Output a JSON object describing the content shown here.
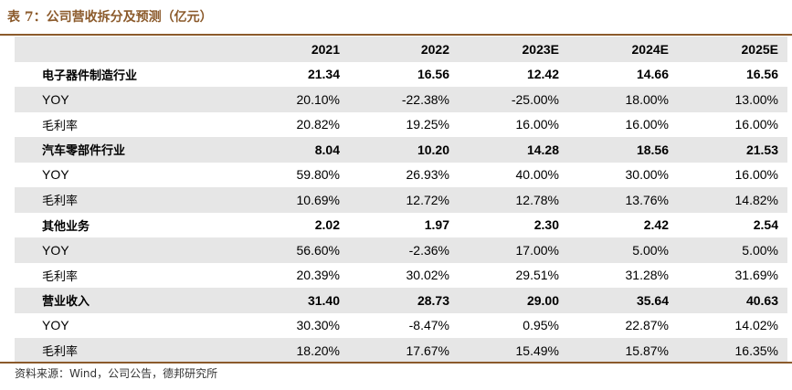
{
  "caption": "表 7：公司营收拆分及预测（亿元）",
  "columns": [
    "",
    "2021",
    "2022",
    "2023E",
    "2024E",
    "2025E"
  ],
  "rows": [
    {
      "label": "电子器件制造行业",
      "values": [
        "21.34",
        "16.56",
        "12.42",
        "14.66",
        "16.56"
      ]
    },
    {
      "label": "YOY",
      "values": [
        "20.10%",
        "-22.38%",
        "-25.00%",
        "18.00%",
        "13.00%"
      ]
    },
    {
      "label": "毛利率",
      "values": [
        "20.82%",
        "19.25%",
        "16.00%",
        "16.00%",
        "16.00%"
      ]
    },
    {
      "label": "汽车零部件行业",
      "values": [
        "8.04",
        "10.20",
        "14.28",
        "18.56",
        "21.53"
      ]
    },
    {
      "label": "YOY",
      "values": [
        "59.80%",
        "26.93%",
        "40.00%",
        "30.00%",
        "16.00%"
      ]
    },
    {
      "label": "毛利率",
      "values": [
        "10.69%",
        "12.72%",
        "12.78%",
        "13.76%",
        "14.82%"
      ]
    },
    {
      "label": "其他业务",
      "values": [
        "2.02",
        "1.97",
        "2.30",
        "2.42",
        "2.54"
      ]
    },
    {
      "label": "YOY",
      "values": [
        "56.60%",
        "-2.36%",
        "17.00%",
        "5.00%",
        "5.00%"
      ]
    },
    {
      "label": "毛利率",
      "values": [
        "20.39%",
        "30.02%",
        "29.51%",
        "31.28%",
        "31.69%"
      ]
    },
    {
      "label": "营业收入",
      "values": [
        "31.40",
        "28.73",
        "29.00",
        "35.64",
        "40.63"
      ]
    },
    {
      "label": "YOY",
      "values": [
        "30.30%",
        "-8.47%",
        "0.95%",
        "22.87%",
        "14.02%"
      ]
    },
    {
      "label": "毛利率",
      "values": [
        "18.20%",
        "17.67%",
        "15.49%",
        "15.87%",
        "16.35%"
      ]
    }
  ],
  "source": "资料来源：Wind，公司公告，德邦研究所",
  "colors": {
    "accent": "#8b5a2b",
    "shade": "#e6e6e6"
  }
}
